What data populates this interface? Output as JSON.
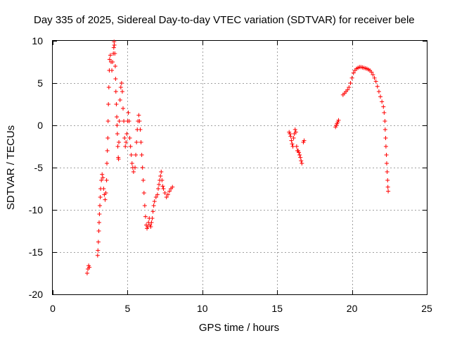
{
  "chart_data": {
    "type": "scatter",
    "title": "Day 335 of 2025, Sidereal Day-to-day VTEC variation (SDTVAR) for receiver bele",
    "xlabel": "GPS time / hours",
    "ylabel": "SDTVAR / TECUs",
    "xlim": [
      0,
      25
    ],
    "ylim": [
      -20,
      10
    ],
    "xticks": [
      0,
      5,
      10,
      15,
      20,
      25
    ],
    "yticks": [
      -20,
      -15,
      -10,
      -5,
      0,
      5,
      10
    ],
    "grid": true,
    "marker": "plus",
    "color": "#ff0000",
    "series": [
      {
        "name": "SDTVAR",
        "points": [
          [
            2.3,
            -17.5
          ],
          [
            2.35,
            -17.0
          ],
          [
            2.4,
            -16.6
          ],
          [
            2.45,
            -16.8
          ],
          [
            3.0,
            -15.4
          ],
          [
            3.02,
            -14.8
          ],
          [
            3.05,
            -13.8
          ],
          [
            3.08,
            -12.5
          ],
          [
            3.1,
            -11.5
          ],
          [
            3.12,
            -10.5
          ],
          [
            3.15,
            -9.5
          ],
          [
            3.18,
            -8.5
          ],
          [
            3.2,
            -7.5
          ],
          [
            3.25,
            -6.5
          ],
          [
            3.3,
            -5.8
          ],
          [
            3.35,
            -6.2
          ],
          [
            3.4,
            -7.5
          ],
          [
            3.45,
            -8.2
          ],
          [
            3.5,
            -8.8
          ],
          [
            3.55,
            -8.0
          ],
          [
            3.6,
            -6.5
          ],
          [
            3.62,
            -4.5
          ],
          [
            3.65,
            -3.0
          ],
          [
            3.68,
            -1.5
          ],
          [
            3.7,
            0.5
          ],
          [
            3.72,
            2.5
          ],
          [
            3.75,
            4.5
          ],
          [
            3.78,
            6.5
          ],
          [
            3.8,
            7.8
          ],
          [
            3.85,
            8.3
          ],
          [
            3.9,
            7.5
          ],
          [
            3.95,
            6.5
          ],
          [
            4.0,
            7.5
          ],
          [
            4.05,
            8.5
          ],
          [
            4.08,
            9.2
          ],
          [
            4.1,
            9.9
          ],
          [
            4.12,
            9.5
          ],
          [
            4.15,
            8.5
          ],
          [
            4.18,
            7.0
          ],
          [
            4.2,
            5.5
          ],
          [
            4.22,
            4.0
          ],
          [
            4.25,
            2.5
          ],
          [
            4.28,
            1.0
          ],
          [
            4.3,
            0.0
          ],
          [
            4.32,
            -1.0
          ],
          [
            4.35,
            -2.5
          ],
          [
            4.38,
            -3.8
          ],
          [
            4.4,
            -4.0
          ],
          [
            4.42,
            -2.0
          ],
          [
            4.45,
            0.5
          ],
          [
            4.5,
            3.0
          ],
          [
            4.55,
            4.5
          ],
          [
            4.6,
            5.0
          ],
          [
            4.65,
            4.0
          ],
          [
            4.7,
            2.0
          ],
          [
            4.75,
            0.5
          ],
          [
            4.8,
            -1.5
          ],
          [
            4.85,
            -2.5
          ],
          [
            4.9,
            -2.0
          ],
          [
            4.95,
            -1.0
          ],
          [
            5.0,
            0.5
          ],
          [
            5.05,
            1.5
          ],
          [
            5.1,
            0.5
          ],
          [
            5.15,
            -1.5
          ],
          [
            5.2,
            -2.5
          ],
          [
            5.25,
            -3.5
          ],
          [
            5.3,
            -4.5
          ],
          [
            5.35,
            -5.0
          ],
          [
            5.4,
            -5.5
          ],
          [
            5.5,
            -5.0
          ],
          [
            5.55,
            -3.5
          ],
          [
            5.6,
            -2.0
          ],
          [
            5.65,
            -0.5
          ],
          [
            5.7,
            0.5
          ],
          [
            5.75,
            1.2
          ],
          [
            5.8,
            0.5
          ],
          [
            5.85,
            -0.5
          ],
          [
            5.9,
            -2.0
          ],
          [
            5.95,
            -3.5
          ],
          [
            6.0,
            -5.0
          ],
          [
            6.05,
            -6.5
          ],
          [
            6.1,
            -8.0
          ],
          [
            6.15,
            -9.5
          ],
          [
            6.2,
            -10.8
          ],
          [
            6.25,
            -11.8
          ],
          [
            6.3,
            -12.2
          ],
          [
            6.35,
            -12.0
          ],
          [
            6.4,
            -11.5
          ],
          [
            6.45,
            -11.0
          ],
          [
            6.5,
            -11.8
          ],
          [
            6.55,
            -12.0
          ],
          [
            6.6,
            -11.5
          ],
          [
            6.65,
            -11.0
          ],
          [
            6.7,
            -10.2
          ],
          [
            6.75,
            -9.5
          ],
          [
            6.8,
            -9.0
          ],
          [
            6.9,
            -8.5
          ],
          [
            7.0,
            -8.2
          ],
          [
            7.05,
            -7.5
          ],
          [
            7.1,
            -7.0
          ],
          [
            7.15,
            -6.5
          ],
          [
            7.2,
            -6.0
          ],
          [
            7.25,
            -5.5
          ],
          [
            7.3,
            -6.5
          ],
          [
            7.35,
            -7.2
          ],
          [
            7.4,
            -7.5
          ],
          [
            7.5,
            -8.0
          ],
          [
            7.6,
            -8.5
          ],
          [
            7.7,
            -8.2
          ],
          [
            7.8,
            -7.8
          ],
          [
            7.9,
            -7.5
          ],
          [
            8.0,
            -7.3
          ],
          [
            15.8,
            -0.8
          ],
          [
            15.85,
            -1.0
          ],
          [
            15.9,
            -1.3
          ],
          [
            15.95,
            -1.8
          ],
          [
            16.0,
            -2.2
          ],
          [
            16.05,
            -2.5
          ],
          [
            16.1,
            -1.5
          ],
          [
            16.15,
            -1.0
          ],
          [
            16.2,
            -0.5
          ],
          [
            16.25,
            -0.8
          ],
          [
            16.3,
            -2.5
          ],
          [
            16.35,
            -3.0
          ],
          [
            16.4,
            -3.0
          ],
          [
            16.45,
            -3.2
          ],
          [
            16.5,
            -3.5
          ],
          [
            16.55,
            -3.8
          ],
          [
            16.6,
            -4.2
          ],
          [
            16.65,
            -4.5
          ],
          [
            16.75,
            -2.0
          ],
          [
            16.8,
            -1.8
          ],
          [
            18.9,
            -0.2
          ],
          [
            18.95,
            0.0
          ],
          [
            19.0,
            0.2
          ],
          [
            19.05,
            0.4
          ],
          [
            19.1,
            0.6
          ],
          [
            19.4,
            3.6
          ],
          [
            19.5,
            3.8
          ],
          [
            19.6,
            4.0
          ],
          [
            19.7,
            4.2
          ],
          [
            19.8,
            4.5
          ],
          [
            19.9,
            5.0
          ],
          [
            20.0,
            5.6
          ],
          [
            20.1,
            6.2
          ],
          [
            20.2,
            6.5
          ],
          [
            20.3,
            6.7
          ],
          [
            20.4,
            6.8
          ],
          [
            20.5,
            6.9
          ],
          [
            20.6,
            6.9
          ],
          [
            20.7,
            6.85
          ],
          [
            20.8,
            6.8
          ],
          [
            20.9,
            6.75
          ],
          [
            21.0,
            6.7
          ],
          [
            21.1,
            6.6
          ],
          [
            21.2,
            6.5
          ],
          [
            21.3,
            6.3
          ],
          [
            21.4,
            6.0
          ],
          [
            21.5,
            5.6
          ],
          [
            21.6,
            5.2
          ],
          [
            21.7,
            4.6
          ],
          [
            21.8,
            4.0
          ],
          [
            21.9,
            3.4
          ],
          [
            22.0,
            2.8
          ],
          [
            22.1,
            2.2
          ],
          [
            22.15,
            1.5
          ],
          [
            22.2,
            0.5
          ],
          [
            22.22,
            -0.5
          ],
          [
            22.25,
            -1.5
          ],
          [
            22.27,
            -2.5
          ],
          [
            22.3,
            -3.5
          ],
          [
            22.32,
            -4.5
          ],
          [
            22.35,
            -5.5
          ],
          [
            22.38,
            -6.5
          ],
          [
            22.4,
            -7.3
          ],
          [
            22.42,
            -7.8
          ]
        ]
      }
    ]
  }
}
